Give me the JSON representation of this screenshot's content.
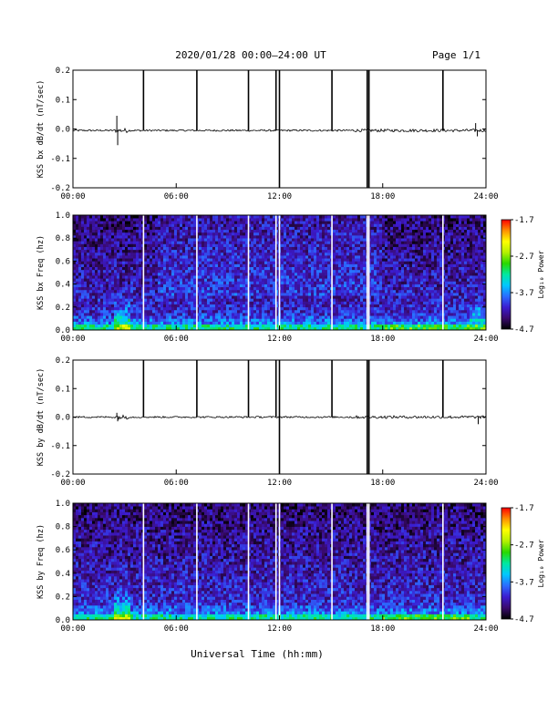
{
  "header": {
    "title": "2020/01/28  00:00–24:00 UT",
    "page": "Page 1/1"
  },
  "common": {
    "x_tick_labels": [
      "00:00",
      "06:00",
      "12:00",
      "18:00",
      "24:00"
    ],
    "x_ticks_hours": [
      0,
      6,
      12,
      18,
      24
    ],
    "xlim_hours": [
      0,
      24
    ],
    "xlabel": "Universal Time (hh:mm)",
    "data_gap_hours": [
      4.1,
      7.2,
      10.2,
      11.8,
      12.0,
      15.05,
      17.1,
      17.2,
      21.5
    ]
  },
  "colorbar": {
    "label": "Log₁₀ Power",
    "tick_labels": [
      "-1.7",
      "-2.7",
      "-3.7",
      "-4.7"
    ],
    "range": [
      -4.7,
      -1.7
    ],
    "colors": [
      "#000000",
      "#3a0a6e",
      "#3b1cd0",
      "#2b6cff",
      "#00c8ff",
      "#00e8a0",
      "#28d800",
      "#b4f000",
      "#ffff00",
      "#ff9000",
      "#ff0000"
    ]
  },
  "chart_data": [
    {
      "type": "line",
      "name": "KSS bx dB/dt",
      "ylabel": "KSS bx dB/dt (nT/sec)",
      "ylim": [
        -0.2,
        0.2
      ],
      "y_ticks": [
        0.2,
        0.1,
        0.0,
        -0.1,
        -0.2
      ],
      "y_tick_labels": [
        "0.2",
        "0.1",
        "0.0",
        "-0.1",
        "-0.2"
      ],
      "baseline": -0.005,
      "noise_level": 0.003,
      "grid": false,
      "spikes": [
        {
          "x": 2.55,
          "y": 0.045
        },
        {
          "x": 2.6,
          "y": -0.055
        },
        {
          "x": 4.1,
          "y": 0.2
        },
        {
          "x": 7.2,
          "y": 0.2
        },
        {
          "x": 10.2,
          "y": 0.2
        },
        {
          "x": 11.8,
          "y": 0.2
        },
        {
          "x": 12.0,
          "y": 0.2
        },
        {
          "x": 12.0,
          "y": -0.2
        },
        {
          "x": 15.05,
          "y": 0.2
        },
        {
          "x": 17.1,
          "y": 0.2
        },
        {
          "x": 17.2,
          "y": 0.2
        },
        {
          "x": 17.1,
          "y": -0.2
        },
        {
          "x": 17.2,
          "y": -0.2
        },
        {
          "x": 21.5,
          "y": 0.2
        },
        {
          "x": 23.4,
          "y": 0.02
        },
        {
          "x": 23.5,
          "y": -0.025
        }
      ]
    },
    {
      "type": "heatmap",
      "name": "KSS bx Freq",
      "ylabel": "KSS bx Freq (hz)",
      "ylim": [
        0.0,
        1.0
      ],
      "y_ticks": [
        1.0,
        0.8,
        0.6,
        0.4,
        0.2,
        0.0
      ],
      "y_tick_labels": [
        "1.0",
        "0.8",
        "0.6",
        "0.4",
        "0.2",
        "0.0"
      ],
      "zlim": [
        -4.7,
        -1.7
      ],
      "grid": false
    },
    {
      "type": "line",
      "name": "KSS by dB/dt",
      "ylabel": "KSS by dB/dt (nT/sec)",
      "ylim": [
        -0.2,
        0.2
      ],
      "y_ticks": [
        0.2,
        0.1,
        0.0,
        -0.1,
        -0.2
      ],
      "y_tick_labels": [
        "0.2",
        "0.1",
        "0.0",
        "-0.1",
        "-0.2"
      ],
      "baseline": 0.0,
      "noise_level": 0.003,
      "grid": false,
      "spikes": [
        {
          "x": 2.55,
          "y": 0.015
        },
        {
          "x": 2.6,
          "y": -0.015
        },
        {
          "x": 4.1,
          "y": 0.2
        },
        {
          "x": 7.2,
          "y": 0.2
        },
        {
          "x": 10.2,
          "y": 0.2
        },
        {
          "x": 11.8,
          "y": 0.2
        },
        {
          "x": 12.0,
          "y": 0.2
        },
        {
          "x": 12.0,
          "y": -0.2
        },
        {
          "x": 15.05,
          "y": 0.2
        },
        {
          "x": 17.1,
          "y": 0.2
        },
        {
          "x": 17.2,
          "y": 0.2
        },
        {
          "x": 17.1,
          "y": -0.2
        },
        {
          "x": 17.2,
          "y": -0.2
        },
        {
          "x": 21.5,
          "y": 0.2
        },
        {
          "x": 23.55,
          "y": -0.025
        }
      ]
    },
    {
      "type": "heatmap",
      "name": "KSS by Freq",
      "ylabel": "KSS by Freq (hz)",
      "ylim": [
        0.0,
        1.0
      ],
      "y_ticks": [
        1.0,
        0.8,
        0.6,
        0.4,
        0.2,
        0.0
      ],
      "y_tick_labels": [
        "1.0",
        "0.8",
        "0.6",
        "0.4",
        "0.2",
        "0.0"
      ],
      "zlim": [
        -4.7,
        -1.7
      ],
      "grid": false
    }
  ]
}
